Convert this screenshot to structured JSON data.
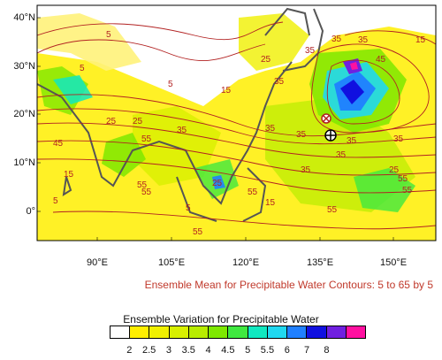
{
  "map": {
    "lat_labels": [
      "40°N",
      "30°N",
      "20°N",
      "10°N",
      "0°"
    ],
    "lon_labels": [
      "90°E",
      "105°E",
      "120°E",
      "135°E",
      "150°E"
    ],
    "contour_labels": [
      "5",
      "5",
      "15",
      "35",
      "35",
      "35",
      "25",
      "15",
      "35",
      "35",
      "45",
      "55",
      "55",
      "25",
      "35",
      "25",
      "35",
      "55",
      "55",
      "45",
      "15",
      "5",
      "5",
      "55",
      "25",
      "35",
      "55",
      "15",
      "55",
      "35",
      "35",
      "35",
      "25",
      "55",
      "5"
    ],
    "markers": [
      {
        "name": "ensemble-member-marker",
        "symbol": "⊗"
      },
      {
        "name": "observed-center-marker",
        "symbol": "⊕"
      }
    ]
  },
  "caption": "Ensemble Mean for Precipitable Water Contours: 5 to 65 by 5",
  "legend": {
    "title": "Ensemble Variation for Precipitable Water",
    "labels": [
      "2",
      "2.5",
      "3",
      "3.5",
      "4",
      "4.5",
      "5",
      "5.5",
      "6",
      "7",
      "8"
    ],
    "colors": [
      "#ffffff",
      "#ffee00",
      "#f0f000",
      "#d8f000",
      "#b8ec00",
      "#7ee800",
      "#40e840",
      "#10e8c0",
      "#20d8f0",
      "#2080ff",
      "#1010e0",
      "#7020e0",
      "#ff10a0"
    ]
  }
}
